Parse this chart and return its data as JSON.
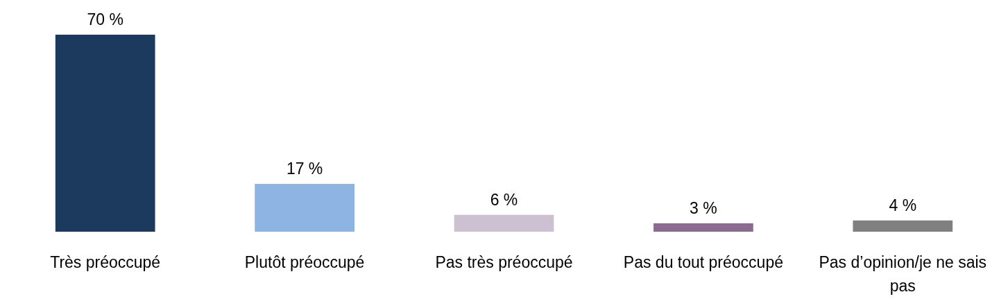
{
  "chart_data": {
    "type": "bar",
    "categories": [
      "Très préoccupé",
      "Plutôt préoccupé",
      "Pas très préoccupé",
      "Pas du tout préoccupé",
      "Pas d’opinion/je ne sais pas"
    ],
    "values": [
      70,
      17,
      6,
      3,
      4
    ],
    "colors": [
      "#1b3a5e",
      "#8eb4e3",
      "#cdc0d3",
      "#8b6b8f",
      "#808080"
    ],
    "value_labels": [
      "70 %",
      "17 %",
      "6 %",
      "3 %",
      "4 %"
    ]
  }
}
